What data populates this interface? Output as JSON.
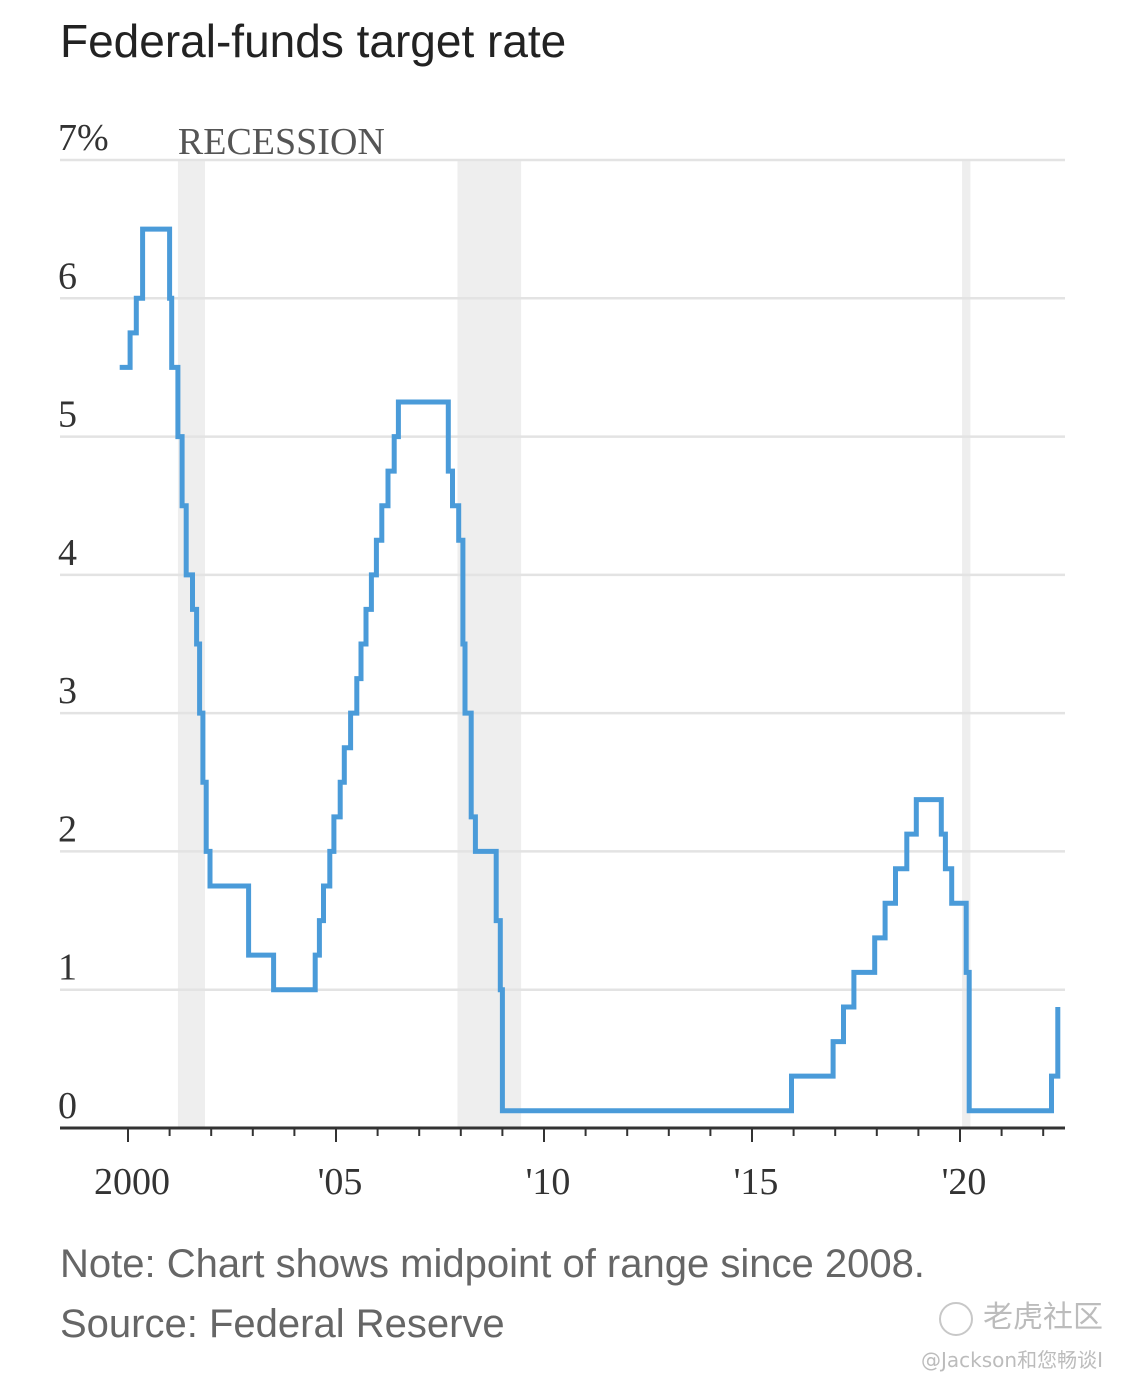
{
  "header": {
    "title": "Federal-funds target rate"
  },
  "chart_data": {
    "type": "line",
    "title": "Federal-funds target rate",
    "y_unit_label": "7%",
    "yticks": [
      "0",
      "1",
      "2",
      "3",
      "4",
      "5",
      "6",
      "7%"
    ],
    "ylim": [
      0,
      7
    ],
    "xlim": [
      1999.7,
      2022.6
    ],
    "xticks": [
      {
        "value": 2000,
        "label": "2000"
      },
      {
        "value": 2005,
        "label": "'05"
      },
      {
        "value": 2010,
        "label": "'10"
      },
      {
        "value": 2015,
        "label": "'15"
      },
      {
        "value": 2020,
        "label": "'20"
      }
    ],
    "grid": true,
    "recession_label": "RECESSION",
    "recessions": [
      [
        2001.2,
        2001.85
      ],
      [
        2007.92,
        2009.45
      ],
      [
        2020.05,
        2020.25
      ]
    ],
    "series": [
      {
        "color": "#4a9bd9",
        "step_points": [
          [
            1999.8,
            5.5
          ],
          [
            2000.05,
            5.75
          ],
          [
            2000.2,
            6.0
          ],
          [
            2000.35,
            6.5
          ],
          [
            2001.0,
            6.0
          ],
          [
            2001.05,
            5.5
          ],
          [
            2001.2,
            5.0
          ],
          [
            2001.3,
            4.5
          ],
          [
            2001.4,
            4.0
          ],
          [
            2001.55,
            3.75
          ],
          [
            2001.65,
            3.5
          ],
          [
            2001.72,
            3.0
          ],
          [
            2001.8,
            2.5
          ],
          [
            2001.88,
            2.0
          ],
          [
            2001.97,
            1.75
          ],
          [
            2002.9,
            1.25
          ],
          [
            2003.5,
            1.0
          ],
          [
            2004.5,
            1.25
          ],
          [
            2004.6,
            1.5
          ],
          [
            2004.7,
            1.75
          ],
          [
            2004.85,
            2.0
          ],
          [
            2004.95,
            2.25
          ],
          [
            2005.1,
            2.5
          ],
          [
            2005.2,
            2.75
          ],
          [
            2005.35,
            3.0
          ],
          [
            2005.5,
            3.25
          ],
          [
            2005.6,
            3.5
          ],
          [
            2005.72,
            3.75
          ],
          [
            2005.85,
            4.0
          ],
          [
            2005.97,
            4.25
          ],
          [
            2006.1,
            4.5
          ],
          [
            2006.25,
            4.75
          ],
          [
            2006.4,
            5.0
          ],
          [
            2006.5,
            5.25
          ],
          [
            2007.7,
            4.75
          ],
          [
            2007.8,
            4.5
          ],
          [
            2007.95,
            4.25
          ],
          [
            2008.05,
            3.5
          ],
          [
            2008.1,
            3.0
          ],
          [
            2008.25,
            2.25
          ],
          [
            2008.35,
            2.0
          ],
          [
            2008.85,
            1.5
          ],
          [
            2008.95,
            1.0
          ],
          [
            2009.0,
            0.125
          ],
          [
            2015.95,
            0.375
          ],
          [
            2016.95,
            0.625
          ],
          [
            2017.2,
            0.875
          ],
          [
            2017.45,
            1.125
          ],
          [
            2017.95,
            1.375
          ],
          [
            2018.2,
            1.625
          ],
          [
            2018.45,
            1.875
          ],
          [
            2018.72,
            2.125
          ],
          [
            2018.95,
            2.375
          ],
          [
            2019.55,
            2.125
          ],
          [
            2019.65,
            1.875
          ],
          [
            2019.8,
            1.625
          ],
          [
            2020.15,
            1.125
          ],
          [
            2020.22,
            0.125
          ],
          [
            2022.2,
            0.375
          ],
          [
            2022.35,
            0.875
          ]
        ]
      }
    ]
  },
  "footer": {
    "note": "Note: Chart shows midpoint of range since 2008.",
    "source": "Source: Federal Reserve"
  },
  "watermark": {
    "logo_text": "老虎社区",
    "user": "@Jackson和您畅谈I"
  }
}
